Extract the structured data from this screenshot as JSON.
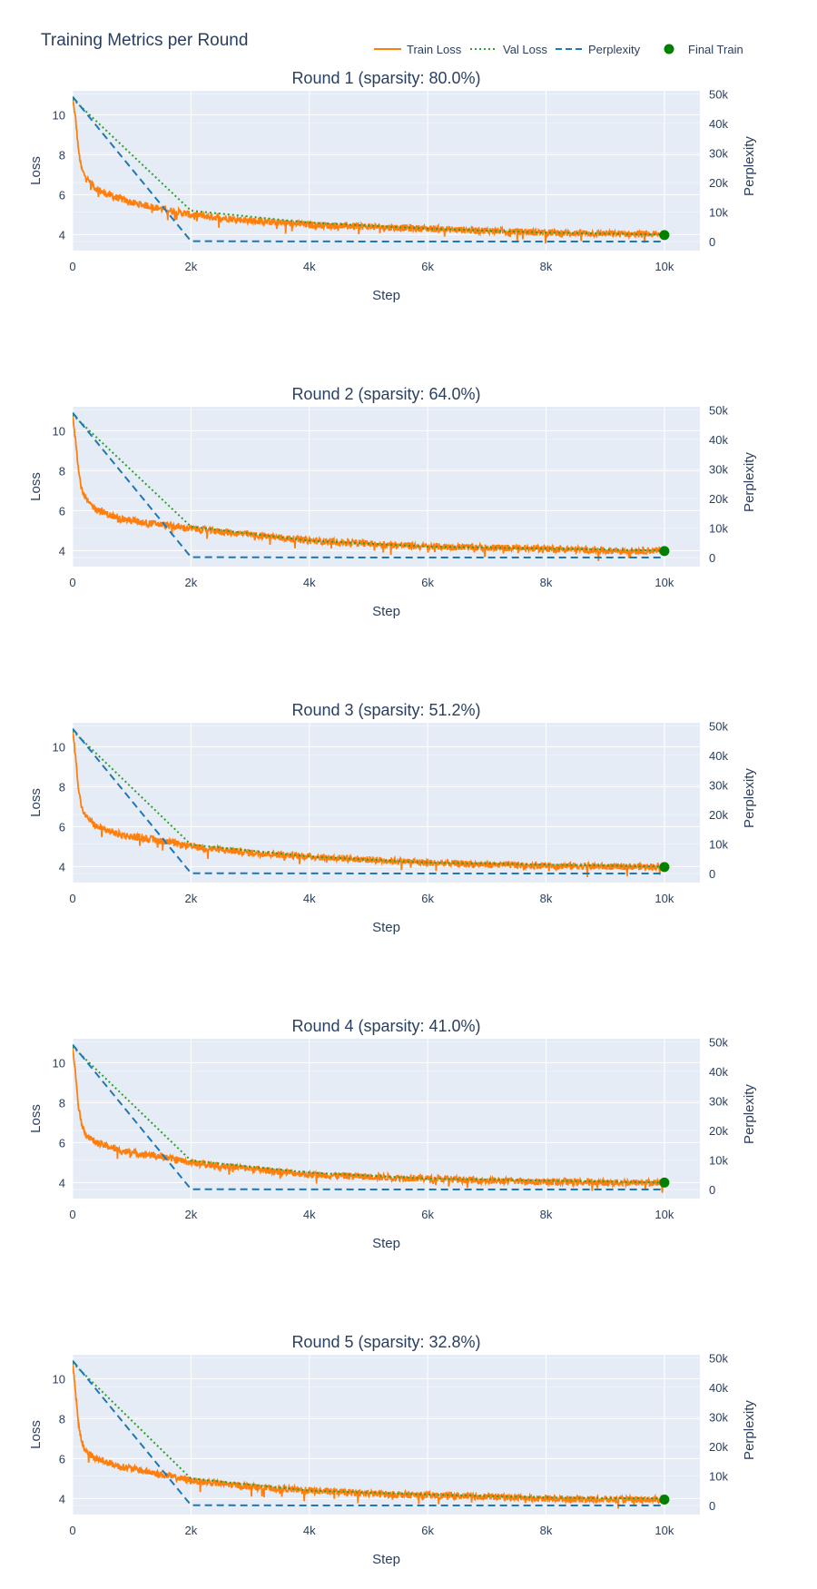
{
  "figure": {
    "title": "Training Metrics per Round"
  },
  "legend": {
    "items": [
      {
        "name": "Train Loss",
        "color": "#ff7f0e",
        "style": "solid"
      },
      {
        "name": "Val Loss",
        "color": "#2ca02c",
        "style": "dotted"
      },
      {
        "name": "Perplexity",
        "color": "#1f77b4",
        "style": "dashed"
      },
      {
        "name": "Final Train",
        "color": "#008000",
        "style": "marker"
      }
    ]
  },
  "colors": {
    "plot_background": "#e5ecf6",
    "grid": "#ffffff",
    "text": "#2a3f5f"
  },
  "chart_data": [
    {
      "type": "line",
      "title": "Round 1 (sparsity: 80.0%)",
      "xlabel": "Step",
      "ylabel": "Loss",
      "y2label": "Perplexity",
      "xlim": [
        0,
        10600
      ],
      "ylim": [
        3.2,
        11.2
      ],
      "y2lim": [
        -3000,
        51000
      ],
      "x_ticks": [
        "0",
        "2k",
        "4k",
        "6k",
        "8k",
        "10k"
      ],
      "y_ticks": [
        "4",
        "6",
        "8",
        "10"
      ],
      "y2_ticks": [
        "0",
        "10k",
        "20k",
        "30k",
        "40k",
        "50k"
      ],
      "series": [
        {
          "name": "Train Loss",
          "axis": "y",
          "x": [
            0,
            50,
            100,
            150,
            200,
            300,
            400,
            600,
            800,
            1000,
            1500,
            2000,
            3000,
            4000,
            5000,
            6000,
            7000,
            8000,
            9000,
            10000
          ],
          "y": [
            10.8,
            9.8,
            8.2,
            7.3,
            7.0,
            6.6,
            6.3,
            6.0,
            5.8,
            5.6,
            5.3,
            5.0,
            4.7,
            4.5,
            4.4,
            4.3,
            4.2,
            4.1,
            4.05,
            4.0
          ]
        },
        {
          "name": "Val Loss",
          "axis": "y",
          "x": [
            0,
            2000,
            4000,
            6000,
            8000,
            10000
          ],
          "y": [
            10.8,
            5.2,
            4.6,
            4.3,
            4.1,
            4.0
          ]
        },
        {
          "name": "Perplexity",
          "axis": "y2",
          "x": [
            0,
            2000,
            4000,
            6000,
            8000,
            10000
          ],
          "y": [
            49000,
            180,
            100,
            75,
            60,
            55
          ]
        },
        {
          "name": "Final Train",
          "axis": "y",
          "x": [
            10000
          ],
          "y": [
            3.98
          ]
        }
      ]
    },
    {
      "type": "line",
      "title": "Round 2 (sparsity: 64.0%)",
      "xlabel": "Step",
      "ylabel": "Loss",
      "y2label": "Perplexity",
      "xlim": [
        0,
        10600
      ],
      "ylim": [
        3.2,
        11.2
      ],
      "y2lim": [
        -3000,
        51000
      ],
      "x_ticks": [
        "0",
        "2k",
        "4k",
        "6k",
        "8k",
        "10k"
      ],
      "y_ticks": [
        "4",
        "6",
        "8",
        "10"
      ],
      "y2_ticks": [
        "0",
        "10k",
        "20k",
        "30k",
        "40k",
        "50k"
      ],
      "series": [
        {
          "name": "Train Loss",
          "axis": "y",
          "x": [
            0,
            50,
            100,
            150,
            200,
            300,
            400,
            600,
            800,
            1000,
            1500,
            2000,
            3000,
            4000,
            5000,
            6000,
            7000,
            8000,
            9000,
            10000
          ],
          "y": [
            10.8,
            9.6,
            8.0,
            7.1,
            6.7,
            6.3,
            6.1,
            5.8,
            5.6,
            5.5,
            5.3,
            5.1,
            4.8,
            4.5,
            4.35,
            4.2,
            4.15,
            4.1,
            4.0,
            4.0
          ]
        },
        {
          "name": "Val Loss",
          "axis": "y",
          "x": [
            0,
            2000,
            4000,
            6000,
            8000,
            10000
          ],
          "y": [
            10.8,
            5.2,
            4.5,
            4.2,
            4.1,
            4.0
          ]
        },
        {
          "name": "Perplexity",
          "axis": "y2",
          "x": [
            0,
            2000,
            4000,
            6000,
            8000,
            10000
          ],
          "y": [
            49000,
            180,
            90,
            70,
            60,
            55
          ]
        },
        {
          "name": "Final Train",
          "axis": "y",
          "x": [
            10000
          ],
          "y": [
            3.98
          ]
        }
      ]
    },
    {
      "type": "line",
      "title": "Round 3 (sparsity: 51.2%)",
      "xlabel": "Step",
      "ylabel": "Loss",
      "y2label": "Perplexity",
      "xlim": [
        0,
        10600
      ],
      "ylim": [
        3.2,
        11.2
      ],
      "y2lim": [
        -3000,
        51000
      ],
      "x_ticks": [
        "0",
        "2k",
        "4k",
        "6k",
        "8k",
        "10k"
      ],
      "y_ticks": [
        "4",
        "6",
        "8",
        "10"
      ],
      "y2_ticks": [
        "0",
        "10k",
        "20k",
        "30k",
        "40k",
        "50k"
      ],
      "series": [
        {
          "name": "Train Loss",
          "axis": "y",
          "x": [
            0,
            50,
            100,
            150,
            200,
            300,
            400,
            600,
            800,
            1000,
            1500,
            2000,
            3000,
            4000,
            5000,
            6000,
            7000,
            8000,
            9000,
            10000
          ],
          "y": [
            10.8,
            9.5,
            7.9,
            7.0,
            6.6,
            6.3,
            6.0,
            5.8,
            5.6,
            5.5,
            5.3,
            5.0,
            4.7,
            4.5,
            4.35,
            4.2,
            4.1,
            4.05,
            4.0,
            4.0
          ]
        },
        {
          "name": "Val Loss",
          "axis": "y",
          "x": [
            0,
            2000,
            4000,
            6000,
            8000,
            10000
          ],
          "y": [
            10.8,
            5.1,
            4.5,
            4.2,
            4.1,
            4.0
          ]
        },
        {
          "name": "Perplexity",
          "axis": "y2",
          "x": [
            0,
            2000,
            4000,
            6000,
            8000,
            10000
          ],
          "y": [
            49000,
            170,
            90,
            68,
            60,
            55
          ]
        },
        {
          "name": "Final Train",
          "axis": "y",
          "x": [
            10000
          ],
          "y": [
            3.98
          ]
        }
      ]
    },
    {
      "type": "line",
      "title": "Round 4 (sparsity: 41.0%)",
      "xlabel": "Step",
      "ylabel": "Loss",
      "y2label": "Perplexity",
      "xlim": [
        0,
        10600
      ],
      "ylim": [
        3.2,
        11.2
      ],
      "y2lim": [
        -3000,
        51000
      ],
      "x_ticks": [
        "0",
        "2k",
        "4k",
        "6k",
        "8k",
        "10k"
      ],
      "y_ticks": [
        "4",
        "6",
        "8",
        "10"
      ],
      "y2_ticks": [
        "0",
        "10k",
        "20k",
        "30k",
        "40k",
        "50k"
      ],
      "series": [
        {
          "name": "Train Loss",
          "axis": "y",
          "x": [
            0,
            50,
            100,
            150,
            200,
            300,
            400,
            600,
            800,
            1000,
            1500,
            2000,
            3000,
            4000,
            5000,
            6000,
            7000,
            8000,
            9000,
            10000
          ],
          "y": [
            10.8,
            9.4,
            7.8,
            7.0,
            6.5,
            6.2,
            6.0,
            5.8,
            5.6,
            5.5,
            5.3,
            5.0,
            4.7,
            4.4,
            4.3,
            4.2,
            4.1,
            4.05,
            4.0,
            4.0
          ]
        },
        {
          "name": "Val Loss",
          "axis": "y",
          "x": [
            0,
            2000,
            4000,
            6000,
            8000,
            10000
          ],
          "y": [
            10.8,
            5.1,
            4.5,
            4.2,
            4.1,
            4.0
          ]
        },
        {
          "name": "Perplexity",
          "axis": "y2",
          "x": [
            0,
            2000,
            4000,
            6000,
            8000,
            10000
          ],
          "y": [
            49000,
            170,
            85,
            66,
            58,
            55
          ]
        },
        {
          "name": "Final Train",
          "axis": "y",
          "x": [
            10000
          ],
          "y": [
            4.0
          ]
        }
      ]
    },
    {
      "type": "line",
      "title": "Round 5 (sparsity: 32.8%)",
      "xlabel": "Step",
      "ylabel": "Loss",
      "y2label": "Perplexity",
      "xlim": [
        0,
        10600
      ],
      "ylim": [
        3.2,
        11.2
      ],
      "y2lim": [
        -3000,
        51000
      ],
      "x_ticks": [
        "0",
        "2k",
        "4k",
        "6k",
        "8k",
        "10k"
      ],
      "y_ticks": [
        "4",
        "6",
        "8",
        "10"
      ],
      "y2_ticks": [
        "0",
        "10k",
        "20k",
        "30k",
        "40k",
        "50k"
      ],
      "series": [
        {
          "name": "Train Loss",
          "axis": "y",
          "x": [
            0,
            50,
            100,
            150,
            200,
            300,
            400,
            600,
            800,
            1000,
            1500,
            2000,
            3000,
            4000,
            5000,
            6000,
            7000,
            8000,
            9000,
            10000
          ],
          "y": [
            10.8,
            9.3,
            7.7,
            6.9,
            6.5,
            6.2,
            6.0,
            5.8,
            5.6,
            5.5,
            5.2,
            4.9,
            4.6,
            4.4,
            4.25,
            4.15,
            4.1,
            4.0,
            3.95,
            3.95
          ]
        },
        {
          "name": "Val Loss",
          "axis": "y",
          "x": [
            0,
            2000,
            4000,
            6000,
            8000,
            10000
          ],
          "y": [
            10.8,
            5.0,
            4.4,
            4.2,
            4.05,
            4.0
          ]
        },
        {
          "name": "Perplexity",
          "axis": "y2",
          "x": [
            0,
            2000,
            4000,
            6000,
            8000,
            10000
          ],
          "y": [
            49000,
            160,
            82,
            64,
            57,
            54
          ]
        },
        {
          "name": "Final Train",
          "axis": "y",
          "x": [
            10000
          ],
          "y": [
            3.95
          ]
        }
      ]
    }
  ]
}
